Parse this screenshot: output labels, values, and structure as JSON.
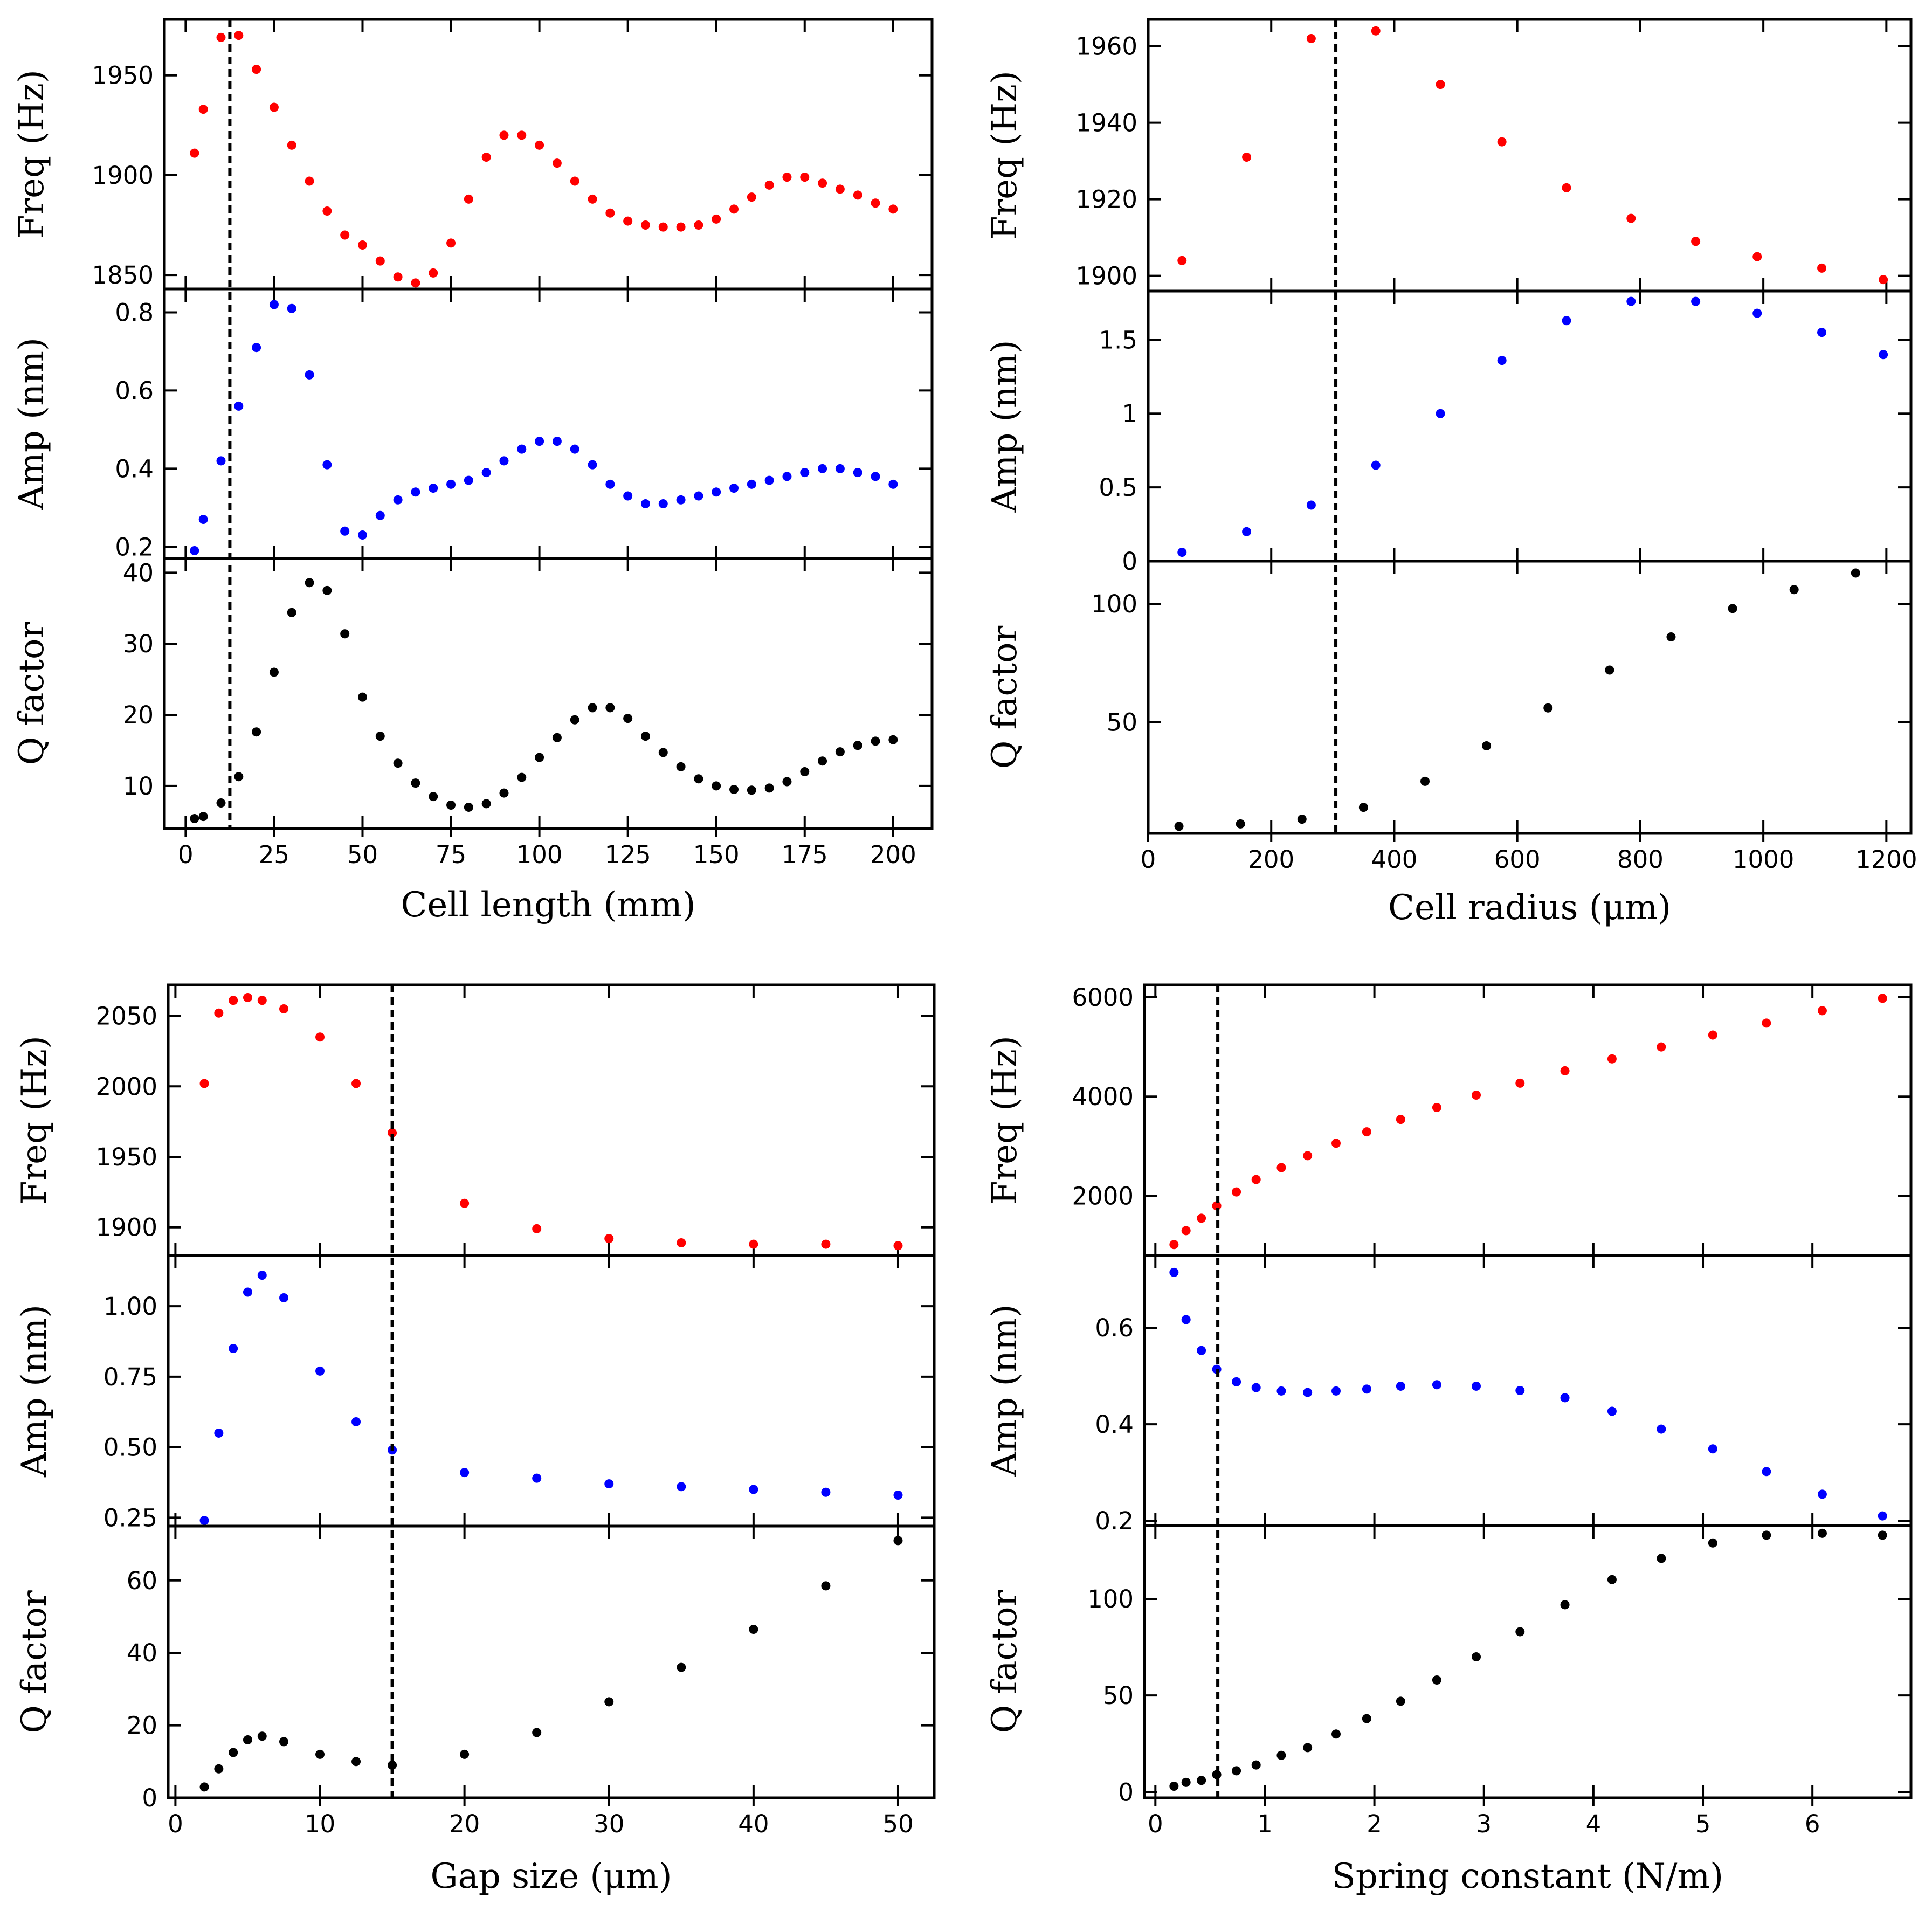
{
  "figure_title": "",
  "chart_data": [
    {
      "type": "scatter",
      "xlabel": "Cell length (mm)",
      "xlim": [
        -6,
        211
      ],
      "xticks": [
        0,
        25,
        50,
        75,
        100,
        125,
        150,
        175,
        200
      ],
      "marker_line": 12.5,
      "subplots": [
        {
          "ylabel": "Freq (Hz)",
          "color": "#ff0000",
          "ylim": [
            1843,
            1978
          ],
          "yticks": [
            1850,
            1900,
            1950
          ],
          "x": [
            2.5,
            5,
            10,
            15,
            20,
            25,
            30,
            35,
            40,
            45,
            50,
            55,
            60,
            65,
            70,
            75,
            80,
            85,
            90,
            95,
            100,
            105,
            110,
            115,
            120,
            125,
            130,
            135,
            140,
            145,
            150,
            155,
            160,
            165,
            170,
            175,
            180,
            185,
            190,
            195,
            200
          ],
          "y": [
            1911,
            1933,
            1969,
            1970,
            1953,
            1934,
            1915,
            1897,
            1882,
            1870,
            1865,
            1857,
            1849,
            1846,
            1851,
            1866,
            1888,
            1909,
            1920,
            1920,
            1915,
            1906,
            1897,
            1888,
            1881,
            1877,
            1875,
            1874,
            1874,
            1875,
            1878,
            1883,
            1889,
            1895,
            1899,
            1899,
            1896,
            1893,
            1890,
            1886,
            1883
          ]
        },
        {
          "ylabel": "Amp (nm)",
          "color": "#0000ff",
          "ylim": [
            0.17,
            0.86
          ],
          "yticks": [
            0.2,
            0.4,
            0.6,
            0.8
          ],
          "x": [
            2.5,
            5,
            10,
            15,
            20,
            25,
            30,
            35,
            40,
            45,
            50,
            55,
            60,
            65,
            70,
            75,
            80,
            85,
            90,
            95,
            100,
            105,
            110,
            115,
            120,
            125,
            130,
            135,
            140,
            145,
            150,
            155,
            160,
            165,
            170,
            175,
            180,
            185,
            190,
            195,
            200
          ],
          "y": [
            0.19,
            0.27,
            0.42,
            0.56,
            0.71,
            0.82,
            0.81,
            0.64,
            0.41,
            0.24,
            0.23,
            0.28,
            0.32,
            0.34,
            0.35,
            0.36,
            0.37,
            0.39,
            0.42,
            0.45,
            0.47,
            0.47,
            0.45,
            0.41,
            0.36,
            0.33,
            0.31,
            0.31,
            0.32,
            0.33,
            0.34,
            0.35,
            0.36,
            0.37,
            0.38,
            0.39,
            0.4,
            0.4,
            0.39,
            0.38,
            0.36
          ]
        },
        {
          "ylabel": "Q factor",
          "color": "#000000",
          "ylim": [
            4,
            42
          ],
          "yticks": [
            10,
            20,
            30,
            40
          ],
          "x": [
            2.5,
            5,
            10,
            15,
            20,
            25,
            30,
            35,
            40,
            45,
            50,
            55,
            60,
            65,
            70,
            75,
            80,
            85,
            90,
            95,
            100,
            105,
            110,
            115,
            120,
            125,
            130,
            135,
            140,
            145,
            150,
            155,
            160,
            165,
            170,
            175,
            180,
            185,
            190,
            195,
            200
          ],
          "y": [
            5.4,
            5.7,
            7.6,
            11.3,
            17.6,
            26.0,
            34.4,
            38.6,
            37.5,
            31.4,
            22.5,
            17.0,
            13.2,
            10.4,
            8.5,
            7.3,
            7.0,
            7.5,
            9.0,
            11.2,
            14.0,
            16.8,
            19.3,
            21.0,
            21.0,
            19.5,
            17.0,
            14.7,
            12.7,
            11.0,
            10.0,
            9.5,
            9.4,
            9.7,
            10.6,
            12.0,
            13.5,
            14.8,
            15.7,
            16.3,
            16.5
          ]
        }
      ]
    },
    {
      "type": "scatter",
      "xlabel": "Cell radius (μm)",
      "xlim": [
        0,
        1240
      ],
      "xticks": [
        0,
        200,
        400,
        600,
        800,
        1000,
        1200
      ],
      "marker_line": 305,
      "subplots": [
        {
          "ylabel": "Freq (Hz)",
          "color": "#ff0000",
          "ylim": [
            1896,
            1967
          ],
          "yticks": [
            1900,
            1920,
            1940,
            1960
          ],
          "x": [
            55,
            160,
            265,
            370,
            475,
            575,
            680,
            785,
            890,
            990,
            1095,
            1195
          ],
          "y": [
            1904,
            1931,
            1962,
            1964,
            1950,
            1935,
            1923,
            1915,
            1909,
            1905,
            1902,
            1899
          ]
        },
        {
          "ylabel": "Amp (nm)",
          "color": "#0000ff",
          "ylim": [
            0,
            1.83
          ],
          "yticks": [
            0.0,
            0.5,
            1.0,
            1.5
          ],
          "x": [
            55,
            160,
            265,
            370,
            475,
            575,
            680,
            785,
            890,
            990,
            1095,
            1195
          ],
          "y": [
            0.06,
            0.2,
            0.38,
            0.65,
            1.0,
            1.36,
            1.63,
            1.76,
            1.76,
            1.68,
            1.55,
            1.4
          ]
        },
        {
          "ylabel": "Q factor",
          "color": "#000000",
          "ylim": [
            3,
            118
          ],
          "yticks": [
            50,
            100
          ],
          "x": [
            50,
            150,
            250,
            350,
            450,
            550,
            650,
            750,
            850,
            950,
            1050,
            1150
          ],
          "y": [
            6,
            7,
            9,
            14,
            25,
            40,
            56,
            72,
            86,
            98,
            106,
            113
          ]
        }
      ]
    },
    {
      "type": "scatter",
      "xlabel": "Gap size (μm)",
      "xlim": [
        -0.5,
        52.5
      ],
      "xticks": [
        0,
        10,
        20,
        30,
        40,
        50
      ],
      "marker_line": 15,
      "subplots": [
        {
          "ylabel": "Freq (Hz)",
          "color": "#ff0000",
          "ylim": [
            1880,
            2072
          ],
          "yticks": [
            1900,
            1950,
            2000,
            2050
          ],
          "x": [
            2,
            3,
            4,
            5,
            6,
            7.5,
            10,
            12.5,
            15,
            20,
            25,
            30,
            35,
            40,
            45,
            50
          ],
          "y": [
            2002,
            2052,
            2061,
            2063,
            2061,
            2055,
            2035,
            2002,
            1967,
            1917,
            1899,
            1892,
            1889,
            1888,
            1888,
            1887
          ]
        },
        {
          "ylabel": "Amp (nm)",
          "color": "#0000ff",
          "ylim": [
            0.22,
            1.18
          ],
          "yticks": [
            0.25,
            0.5,
            0.75,
            1.0
          ],
          "tick_labels": [
            "0.25",
            "0.50",
            "0.75",
            "1.00"
          ],
          "x": [
            2,
            3,
            4,
            5,
            6,
            7.5,
            10,
            12.5,
            15,
            20,
            25,
            30,
            35,
            40,
            45,
            50
          ],
          "y": [
            0.24,
            0.55,
            0.85,
            1.05,
            1.11,
            1.03,
            0.77,
            0.59,
            0.49,
            0.41,
            0.39,
            0.37,
            0.36,
            0.35,
            0.34,
            0.33
          ]
        },
        {
          "ylabel": "Q factor",
          "color": "#000000",
          "ylim": [
            0,
            75
          ],
          "yticks": [
            0,
            20,
            40,
            60
          ],
          "x": [
            2,
            3,
            4,
            5,
            6,
            7.5,
            10,
            12.5,
            15,
            20,
            25,
            30,
            35,
            40,
            45,
            50
          ],
          "y": [
            3,
            8,
            12.5,
            16,
            17,
            15.5,
            12,
            10,
            9,
            12,
            18,
            26.5,
            36,
            46.5,
            58.5,
            71
          ]
        }
      ]
    },
    {
      "type": "scatter",
      "xlabel": "Spring constant (N/m)",
      "xlim": [
        -0.1,
        6.9
      ],
      "xticks": [
        0,
        1,
        2,
        3,
        4,
        5,
        6
      ],
      "marker_line": 0.57,
      "subplots": [
        {
          "ylabel": "Freq (Hz)",
          "color": "#ff0000",
          "ylim": [
            800,
            6250
          ],
          "yticks": [
            2000,
            4000,
            6000
          ],
          "x": [
            0.17,
            0.28,
            0.42,
            0.56,
            0.74,
            0.92,
            1.15,
            1.39,
            1.65,
            1.93,
            2.24,
            2.57,
            2.93,
            3.33,
            3.74,
            4.17,
            4.62,
            5.09,
            5.58,
            6.09,
            6.64
          ],
          "y": [
            1020,
            1300,
            1550,
            1800,
            2080,
            2330,
            2570,
            2810,
            3060,
            3290,
            3540,
            3780,
            4030,
            4270,
            4520,
            4760,
            5000,
            5240,
            5480,
            5730,
            5980
          ]
        },
        {
          "ylabel": "Amp (nm)",
          "color": "#0000ff",
          "ylim": [
            0.19,
            0.75
          ],
          "yticks": [
            0.2,
            0.4,
            0.6
          ],
          "x": [
            0.17,
            0.28,
            0.42,
            0.56,
            0.74,
            0.92,
            1.15,
            1.39,
            1.65,
            1.93,
            2.24,
            2.57,
            2.93,
            3.33,
            3.74,
            4.17,
            4.62,
            5.09,
            5.58,
            6.09,
            6.64
          ],
          "y": [
            0.715,
            0.617,
            0.553,
            0.514,
            0.488,
            0.476,
            0.469,
            0.466,
            0.469,
            0.473,
            0.479,
            0.482,
            0.479,
            0.47,
            0.455,
            0.427,
            0.39,
            0.349,
            0.302,
            0.255,
            0.21
          ]
        },
        {
          "ylabel": "Q factor",
          "color": "#000000",
          "ylim": [
            -3,
            138
          ],
          "yticks": [
            0,
            50,
            100
          ],
          "x": [
            0.17,
            0.28,
            0.42,
            0.56,
            0.74,
            0.92,
            1.15,
            1.39,
            1.65,
            1.93,
            2.24,
            2.57,
            2.93,
            3.33,
            3.74,
            4.17,
            4.62,
            5.09,
            5.58,
            6.09,
            6.64
          ],
          "y": [
            3,
            5,
            6,
            9,
            11,
            14,
            19,
            23,
            30,
            38,
            47,
            58,
            70,
            83,
            97,
            110,
            121,
            129,
            133,
            134,
            133
          ]
        }
      ]
    }
  ]
}
